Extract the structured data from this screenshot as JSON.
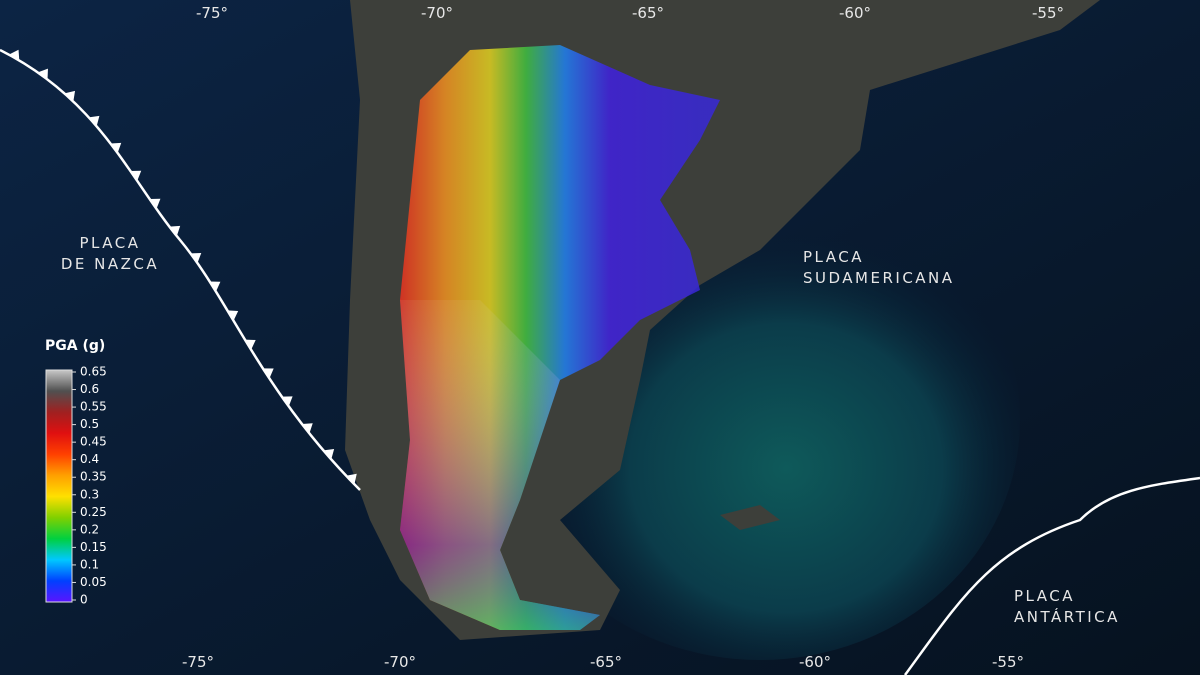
{
  "map": {
    "top_longitudes": [
      "-75°",
      "-70°",
      "-65°",
      "-60°",
      "-55°"
    ],
    "bottom_longitudes": [
      "-75°",
      "-70°",
      "-65°",
      "-60°",
      "-55°"
    ],
    "plates": [
      {
        "lines": [
          "PLACA",
          "DE NAZCA"
        ]
      },
      {
        "lines": [
          "PLACA",
          "SUDAMERICANA"
        ]
      },
      {
        "lines": [
          "PLACA",
          "ANTÁRTICA"
        ]
      }
    ],
    "legend": {
      "title": "PGA (g)",
      "range": [
        0,
        0.65
      ],
      "ticks": [
        0,
        0.05,
        0.1,
        0.15,
        0.2,
        0.25,
        0.3,
        0.35,
        0.4,
        0.45,
        0.5,
        0.55,
        0.6,
        0.65
      ],
      "colors": [
        "#5a14ff",
        "#0040ff",
        "#00c8ff",
        "#00d040",
        "#80d000",
        "#ffe000",
        "#ffa000",
        "#ff4000",
        "#e01010",
        "#a02020",
        "#505050",
        "#c8c8c8"
      ]
    }
  }
}
